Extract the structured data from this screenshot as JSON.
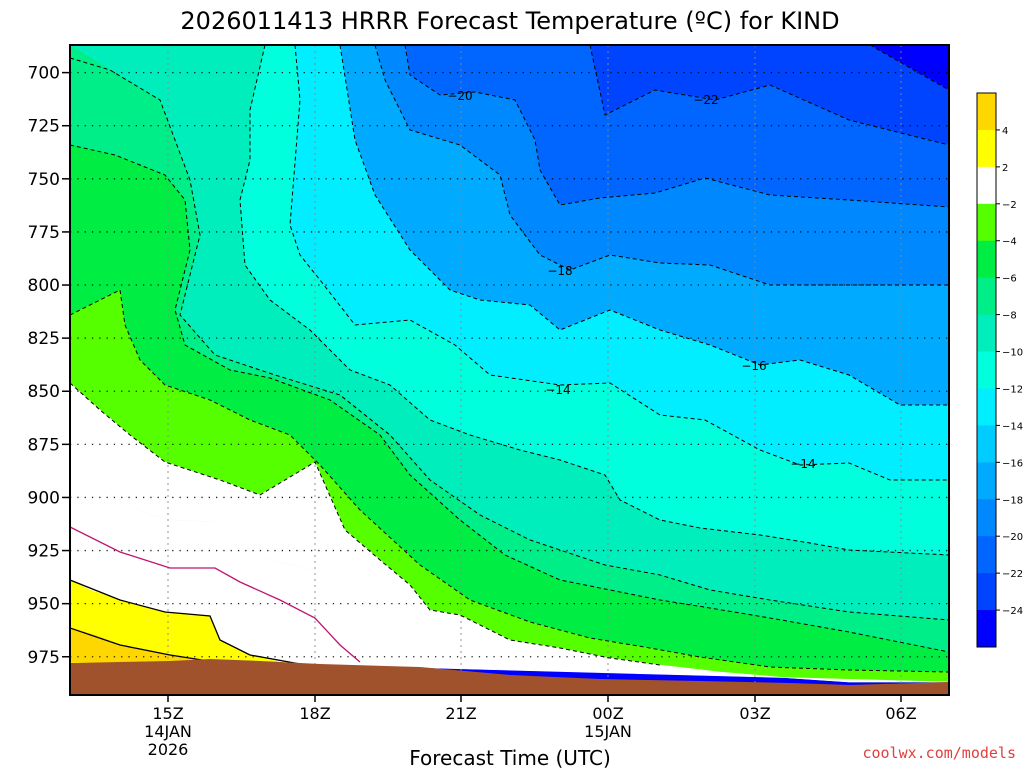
{
  "chart_data": {
    "type": "heatmap",
    "title": "2026011413 HRRR Forecast Temperature (ºC) for KIND",
    "xlabel": "Forecast Time (UTC)",
    "ylabel": "",
    "credit": "coolwx.com/models",
    "y_axis": {
      "ticks": [
        "700",
        "725",
        "750",
        "775",
        "800",
        "825",
        "850",
        "875",
        "900",
        "925",
        "950",
        "975"
      ],
      "range": [
        687,
        993
      ]
    },
    "x_axis": {
      "ticks": [
        {
          "label": "15Z",
          "sub1": "14JAN",
          "sub2": "2026"
        },
        {
          "label": "18Z",
          "sub1": "",
          "sub2": ""
        },
        {
          "label": "21Z",
          "sub1": "",
          "sub2": ""
        },
        {
          "label": "00Z",
          "sub1": "15JAN",
          "sub2": ""
        },
        {
          "label": "03Z",
          "sub1": "",
          "sub2": ""
        },
        {
          "label": "06Z",
          "sub1": "",
          "sub2": ""
        }
      ]
    },
    "colorbar": {
      "labels": [
        "4",
        "2",
        "−2",
        "−4",
        "−6",
        "−8",
        "−10",
        "−12",
        "−14",
        "−16",
        "−18",
        "−20",
        "−22",
        "−24"
      ],
      "colors": [
        "#ffd700",
        "#ffff00",
        "#ffffff",
        "#55ff00",
        "#00ee44",
        "#00ee88",
        "#00eebb",
        "#00ffdd",
        "#00eeff",
        "#00ccff",
        "#00aaff",
        "#0088ff",
        "#0066ff",
        "#0044ff",
        "#0000ff"
      ]
    },
    "contour_labels": [
      {
        "text": "−20",
        "value": -20
      },
      {
        "text": "−22",
        "value": -22
      },
      {
        "text": "−18",
        "value": -18
      },
      {
        "text": "−16",
        "value": -16
      },
      {
        "text": "−14",
        "value": -14
      },
      {
        "text": "−14",
        "value": -14
      }
    ],
    "bands": [
      {
        "color": "#0000ff",
        "levels": "-24 to -22"
      },
      {
        "color": "#0044ff",
        "levels": "-22 to -20"
      },
      {
        "color": "#0066ff",
        "levels": "-20 to -18"
      },
      {
        "color": "#0088ff",
        "levels": "-18 to -16"
      },
      {
        "color": "#00aaff",
        "levels": "-16 to -14"
      },
      {
        "color": "#00eeff",
        "levels": "-14 to -12"
      },
      {
        "color": "#00ffdd",
        "levels": "-12 to -10"
      },
      {
        "color": "#00eebb",
        "levels": "-10 to -8"
      },
      {
        "color": "#00ee88",
        "levels": "-8 to -6"
      },
      {
        "color": "#00ee44",
        "levels": "-6 to -4"
      },
      {
        "color": "#55ff00",
        "levels": "-4 to -2"
      },
      {
        "color": "#ffffff",
        "levels": "-2 to 2"
      },
      {
        "color": "#ffff00",
        "levels": "2 to 4"
      },
      {
        "color": "#ffd700",
        "levels": "4 to 6"
      }
    ],
    "ground_color": "#a0522d"
  }
}
